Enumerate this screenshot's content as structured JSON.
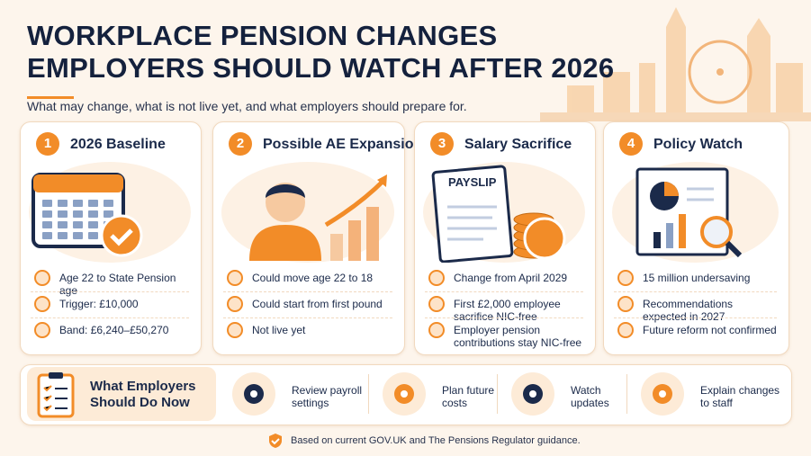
{
  "header": {
    "title_line1": "WORKPLACE PENSION CHANGES",
    "title_line2": "EMPLOYERS SHOULD WATCH AFTER 2026",
    "subtitle": "What may change, what is not live yet, and what employers should prepare for."
  },
  "cards": [
    {
      "number": 1,
      "title": "2026 Baseline",
      "items": [
        "Age 22 to State Pension age",
        "Trigger: £10,000",
        "Band: £6,240–£50,270"
      ]
    },
    {
      "number": 2,
      "title": "Possible AE Expansion",
      "items": [
        "Could move age 22 to 18",
        "Could start from first pound",
        "Not live yet"
      ]
    },
    {
      "number": 3,
      "title": "Salary Sacrifice",
      "illustration_label": "PAYSLIP",
      "items": [
        "Change from April 2029",
        "First £2,000 employee sacrifice NIC-free",
        "Employer pension contributions stay NIC-free"
      ]
    },
    {
      "number": 4,
      "title": "Policy Watch",
      "items": [
        "15 million undersaving",
        "Recommendations expected in 2027",
        "Future reform not confirmed"
      ]
    }
  ],
  "actions": {
    "title": "What Employers Should Do Now",
    "items": [
      "Review payroll settings",
      "Plan future costs",
      "Watch updates",
      "Explain changes to staff"
    ]
  },
  "footer": "Based on current GOV.UK and The Pensions Regulator guidance."
}
